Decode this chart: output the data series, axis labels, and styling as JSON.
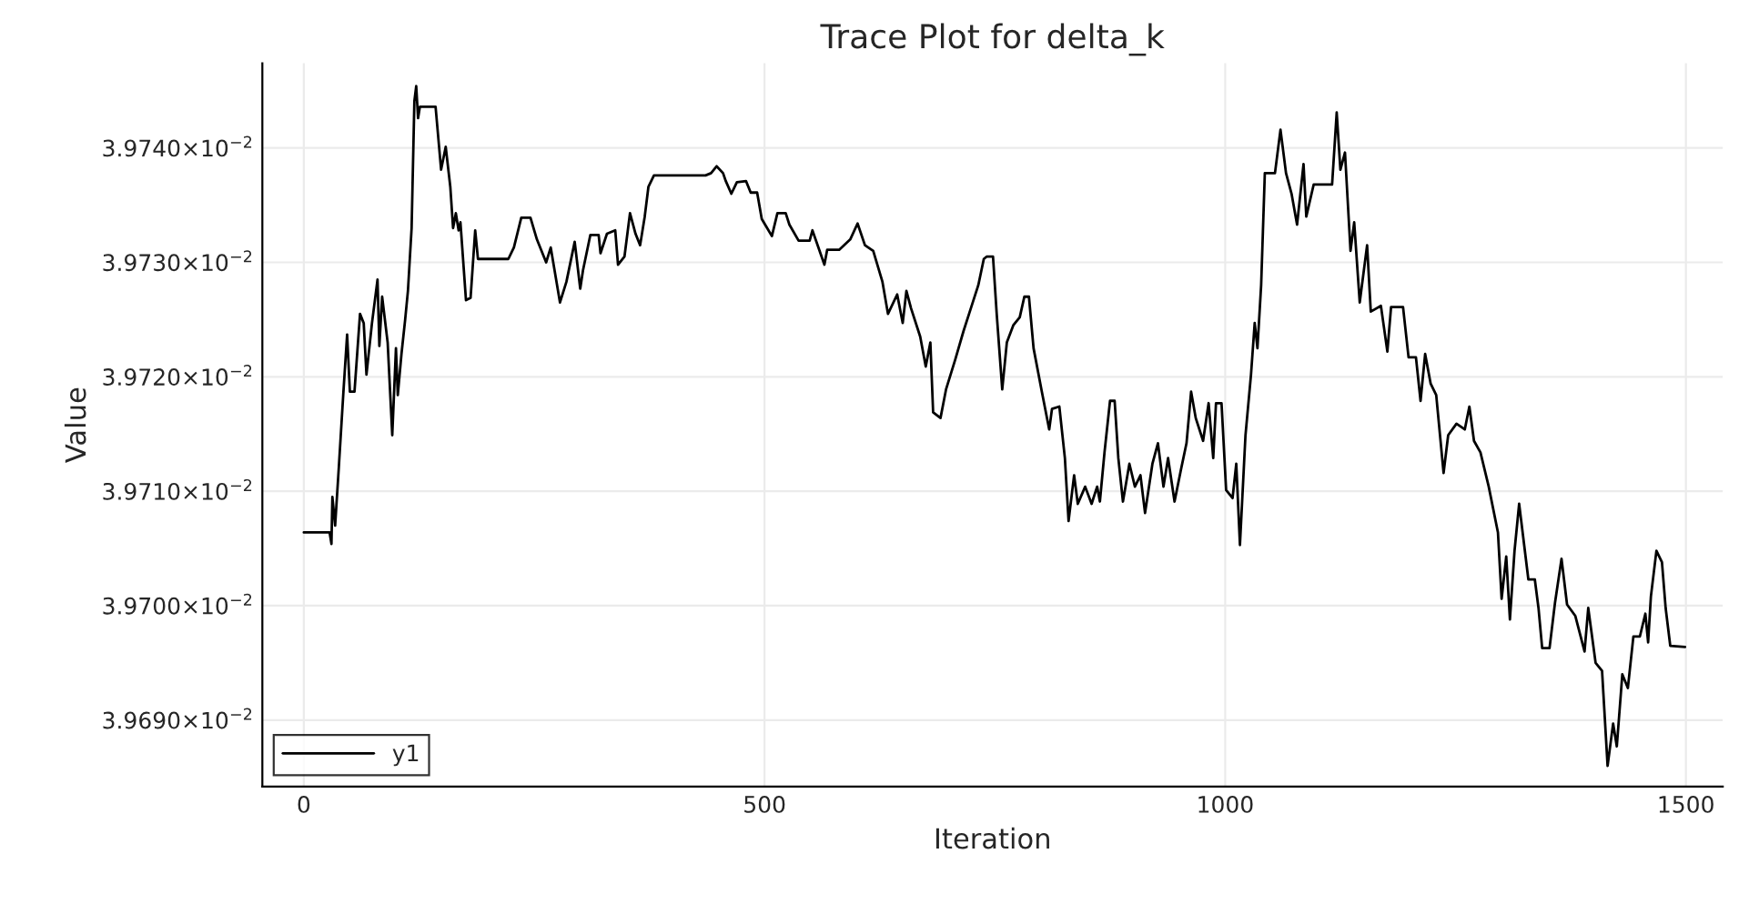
{
  "chart_data": {
    "type": "line",
    "title": "Trace Plot for delta_k",
    "xlabel": "Iteration",
    "ylabel": "Value",
    "xlim": [
      -45,
      1540
    ],
    "xticks": [
      0,
      500,
      1000,
      1500
    ],
    "ylim": [
      0.0396842,
      0.0397474
    ],
    "yticks": [
      {
        "value": 0.03969,
        "label": "3.9690×10$^{−2}$"
      },
      {
        "value": 0.0397,
        "label": "3.9700×10$^{−2}$"
      },
      {
        "value": 0.03971,
        "label": "3.9710×10$^{−2}$"
      },
      {
        "value": 0.03972,
        "label": "3.9720×10$^{−2}$"
      },
      {
        "value": 0.03973,
        "label": "3.9730×10$^{−2}$"
      },
      {
        "value": 0.03974,
        "label": "3.9740×10$^{−2}$"
      }
    ],
    "grid": true,
    "legend": "bottom left",
    "marker": "none",
    "line_style": "solid",
    "series": [
      {
        "name": "y1",
        "color": "#000000",
        "x": [
          0,
          28,
          30,
          31,
          34,
          38,
          43,
          47,
          50,
          55,
          61,
          65,
          68,
          74,
          80,
          82,
          85,
          91,
          96,
          100,
          102,
          106,
          110,
          113,
          117,
          120,
          122,
          124,
          126,
          143,
          149,
          154,
          159,
          162,
          165,
          168,
          170,
          176,
          181,
          186,
          189,
          222,
          228,
          236,
          246,
          253,
          263,
          268,
          278,
          285,
          294,
          300,
          303,
          311,
          320,
          322,
          329,
          338,
          341,
          348,
          354,
          360,
          365,
          370,
          374,
          380,
          436,
          442,
          448,
          455,
          458,
          464,
          470,
          480,
          485,
          492,
          497,
          508,
          514,
          523,
          527,
          537,
          549,
          552,
          565,
          568,
          581,
          593,
          601,
          609,
          618,
          628,
          634,
          644,
          650,
          654,
          659,
          669,
          675,
          680,
          683,
          691,
          697,
          707,
          716,
          722,
          732,
          738,
          741,
          748,
          752,
          758,
          763,
          770,
          777,
          782,
          787,
          792,
          801,
          809,
          812,
          820,
          826,
          830,
          836,
          840,
          848,
          855,
          861,
          864,
          869,
          875,
          880,
          884,
          889,
          896,
          902,
          908,
          913,
          921,
          927,
          933,
          938,
          945,
          952,
          958,
          963,
          968,
          976,
          982,
          987,
          990,
          996,
          1001,
          1008,
          1012,
          1016,
          1022,
          1028,
          1032,
          1035,
          1039,
          1043,
          1054,
          1060,
          1066,
          1072,
          1078,
          1085,
          1088,
          1096,
          1116,
          1121,
          1125,
          1130,
          1136,
          1140,
          1146,
          1154,
          1158,
          1169,
          1176,
          1180,
          1193,
          1199,
          1207,
          1212,
          1217,
          1223,
          1229,
          1237,
          1242,
          1251,
          1260,
          1265,
          1270,
          1277,
          1286,
          1296,
          1300,
          1305,
          1309,
          1314,
          1319,
          1329,
          1336,
          1340,
          1344,
          1352,
          1358,
          1365,
          1371,
          1380,
          1390,
          1394,
          1402,
          1409,
          1415,
          1421,
          1425,
          1431,
          1437,
          1443,
          1450,
          1456,
          1459,
          1462,
          1468,
          1474,
          1478,
          1483,
          1499
        ],
        "values": [
          0.0397064,
          0.0397064,
          0.0397054,
          0.0397095,
          0.039707,
          0.0397121,
          0.0397187,
          0.0397237,
          0.0397187,
          0.0397187,
          0.0397255,
          0.0397247,
          0.0397202,
          0.0397247,
          0.0397285,
          0.0397227,
          0.039727,
          0.039723,
          0.0397149,
          0.0397225,
          0.0397184,
          0.039722,
          0.039725,
          0.0397275,
          0.039733,
          0.0397441,
          0.0397454,
          0.0397426,
          0.0397436,
          0.0397436,
          0.0397381,
          0.0397401,
          0.0397366,
          0.039733,
          0.0397343,
          0.0397328,
          0.0397335,
          0.0397267,
          0.0397269,
          0.0397328,
          0.0397303,
          0.0397303,
          0.0397313,
          0.0397339,
          0.0397339,
          0.039732,
          0.03973,
          0.0397313,
          0.0397265,
          0.0397283,
          0.0397318,
          0.0397277,
          0.0397293,
          0.0397324,
          0.0397324,
          0.0397308,
          0.0397325,
          0.0397328,
          0.0397298,
          0.0397305,
          0.0397343,
          0.0397325,
          0.0397315,
          0.039734,
          0.0397366,
          0.0397376,
          0.0397376,
          0.0397378,
          0.0397384,
          0.0397378,
          0.0397371,
          0.039736,
          0.039737,
          0.0397371,
          0.0397361,
          0.0397361,
          0.0397338,
          0.0397323,
          0.0397343,
          0.0397343,
          0.0397333,
          0.0397319,
          0.0397319,
          0.0397328,
          0.0397298,
          0.0397311,
          0.0397311,
          0.039732,
          0.0397334,
          0.0397315,
          0.039731,
          0.0397283,
          0.0397255,
          0.0397272,
          0.0397247,
          0.0397275,
          0.039726,
          0.0397235,
          0.0397209,
          0.039723,
          0.0397169,
          0.0397164,
          0.0397189,
          0.0397215,
          0.039724,
          0.0397255,
          0.039728,
          0.0397303,
          0.0397305,
          0.0397305,
          0.0397255,
          0.0397189,
          0.039723,
          0.0397245,
          0.0397252,
          0.039727,
          0.039727,
          0.0397225,
          0.0397187,
          0.0397154,
          0.0397172,
          0.0397174,
          0.0397129,
          0.0397074,
          0.0397114,
          0.0397089,
          0.0397104,
          0.0397089,
          0.0397104,
          0.0397091,
          0.0397134,
          0.0397179,
          0.0397179,
          0.0397129,
          0.0397091,
          0.0397124,
          0.0397104,
          0.0397114,
          0.0397081,
          0.0397124,
          0.0397142,
          0.0397104,
          0.0397129,
          0.0397091,
          0.0397119,
          0.0397142,
          0.0397187,
          0.0397164,
          0.0397144,
          0.0397177,
          0.0397129,
          0.0397177,
          0.0397177,
          0.0397101,
          0.0397094,
          0.0397124,
          0.0397053,
          0.0397149,
          0.0397202,
          0.0397247,
          0.0397225,
          0.039728,
          0.0397378,
          0.0397378,
          0.0397416,
          0.0397378,
          0.039736,
          0.0397333,
          0.0397386,
          0.039734,
          0.0397368,
          0.0397368,
          0.0397431,
          0.0397381,
          0.0397396,
          0.039731,
          0.0397335,
          0.0397265,
          0.0397315,
          0.0397257,
          0.0397262,
          0.0397222,
          0.0397261,
          0.0397261,
          0.0397217,
          0.0397217,
          0.0397179,
          0.039722,
          0.0397194,
          0.0397184,
          0.0397116,
          0.0397149,
          0.0397159,
          0.0397154,
          0.0397174,
          0.0397144,
          0.0397134,
          0.0397104,
          0.0397064,
          0.0397006,
          0.0397043,
          0.0396988,
          0.0397048,
          0.0397089,
          0.0397023,
          0.0397023,
          0.0396998,
          0.0396963,
          0.0396963,
          0.0397003,
          0.0397041,
          0.0397001,
          0.0396991,
          0.039696,
          0.0396998,
          0.039695,
          0.0396943,
          0.039686,
          0.0396897,
          0.0396877,
          0.039694,
          0.0396928,
          0.0396973,
          0.0396973,
          0.0396993,
          0.0396968,
          0.0397008,
          0.0397048,
          0.0397038,
          0.0396998,
          0.0396965,
          0.0396964
        ]
      }
    ]
  }
}
